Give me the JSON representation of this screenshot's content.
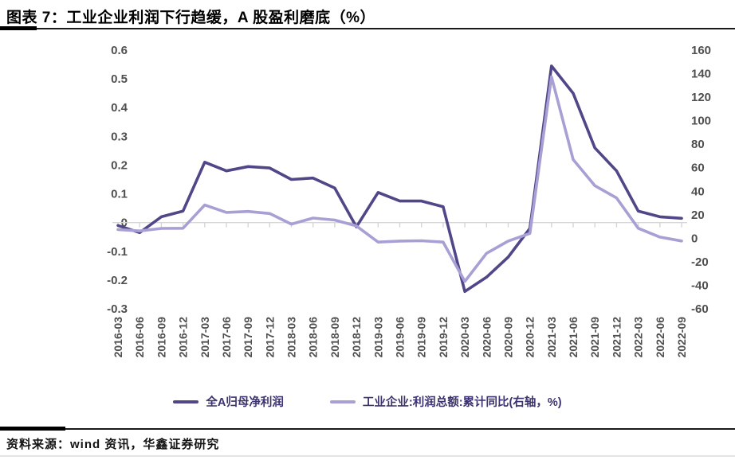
{
  "header": {
    "title": "图表 7：工业企业利润下行趋缓，A 股盈利磨底（%）"
  },
  "source": {
    "label": "资料来源：wind 资讯，华鑫证券研究"
  },
  "colors": {
    "series1": "#514687",
    "series2": "#a8a0d4",
    "grid": "#d6d6d6",
    "axis_text": "#4f4f4f",
    "legend_text": "#3c336e",
    "rule": "#000000"
  },
  "chart_data": {
    "type": "line",
    "title": "图表 7：工业企业利润下行趋缓，A 股盈利磨底（%）",
    "grid": "horizontal-zero-line-only",
    "legend_position": "bottom",
    "categories": [
      "2016-03",
      "2016-06",
      "2016-09",
      "2016-12",
      "2017-03",
      "2017-06",
      "2017-09",
      "2017-12",
      "2018-03",
      "2018-06",
      "2018-09",
      "2018-12",
      "2019-03",
      "2019-06",
      "2019-09",
      "2019-12",
      "2020-03",
      "2020-06",
      "2020-09",
      "2020-12",
      "2021-03",
      "2021-06",
      "2021-09",
      "2021-12",
      "2022-03",
      "2022-06",
      "2022-09"
    ],
    "series": [
      {
        "name": "全A归母净利润",
        "axis": "left",
        "color": "#514687",
        "values": [
          -0.01,
          -0.035,
          0.02,
          0.04,
          0.21,
          0.18,
          0.195,
          0.19,
          0.15,
          0.155,
          0.12,
          -0.015,
          0.105,
          0.075,
          0.075,
          0.055,
          -0.24,
          -0.19,
          -0.12,
          -0.02,
          0.545,
          0.45,
          0.26,
          0.18,
          0.04,
          0.02,
          0.015
        ]
      },
      {
        "name": "工业企业:利润总额:累计同比(右轴，%)",
        "axis": "right",
        "color": "#a8a0d4",
        "values": [
          7.4,
          6.2,
          8.4,
          8.5,
          28.3,
          22.0,
          22.8,
          21.0,
          12.0,
          17.2,
          15.5,
          10.5,
          -3.3,
          -2.4,
          -2.1,
          -3.3,
          -36.7,
          -12.8,
          -2.4,
          4.1,
          137.3,
          66.9,
          44.7,
          34.3,
          8.5,
          1.0,
          -2.3
        ]
      }
    ],
    "left_axis": {
      "min": -0.3,
      "max": 0.6,
      "step": 0.1,
      "tick_labels": [
        "0.6",
        "0.5",
        "0.4",
        "0.3",
        "0.2",
        "0.1",
        "0",
        "-0.1",
        "-0.2",
        "-0.3"
      ]
    },
    "right_axis": {
      "min": -60,
      "max": 160,
      "step": 20,
      "tick_labels": [
        "160",
        "140",
        "120",
        "100",
        "80",
        "60",
        "40",
        "20",
        "0",
        "-20",
        "-40",
        "-60"
      ]
    }
  }
}
